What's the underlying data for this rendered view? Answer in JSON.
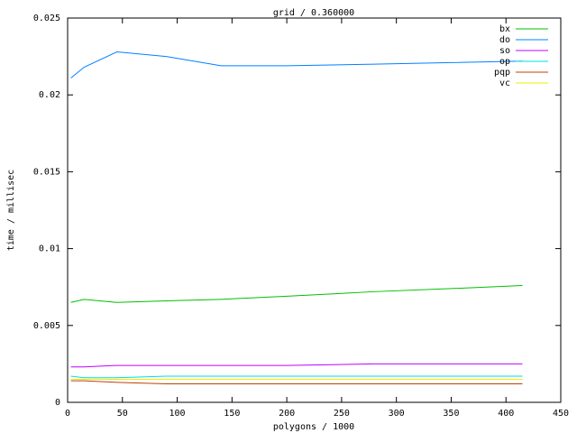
{
  "chart_data": {
    "type": "line",
    "title": "grid / 0.360000",
    "x_label": "polygons / 1000",
    "y_label": "time / millisec",
    "x": [
      3,
      15,
      45,
      90,
      140,
      200,
      280,
      350,
      415
    ],
    "series": [
      {
        "name": "bx",
        "color": "#00c000",
        "values": [
          0.0065,
          0.0067,
          0.0065,
          0.0066,
          0.0067,
          0.0069,
          0.0072,
          0.0074,
          0.0076
        ]
      },
      {
        "name": "do",
        "color": "#0080ff",
        "values": [
          0.0211,
          0.0218,
          0.0228,
          0.0225,
          0.0219,
          0.0219,
          0.022,
          0.0221,
          0.0222
        ]
      },
      {
        "name": "so",
        "color": "#c000ff",
        "values": [
          0.0023,
          0.0023,
          0.0024,
          0.0024,
          0.0024,
          0.0024,
          0.0025,
          0.0025,
          0.0025
        ]
      },
      {
        "name": "op",
        "color": "#00dddd",
        "values": [
          0.0017,
          0.0016,
          0.0016,
          0.0017,
          0.0017,
          0.0017,
          0.0017,
          0.0017,
          0.0017
        ]
      },
      {
        "name": "pqp",
        "color": "#c04000",
        "values": [
          0.0014,
          0.0014,
          0.0013,
          0.0012,
          0.0012,
          0.0012,
          0.0012,
          0.0012,
          0.0012
        ]
      },
      {
        "name": "vc",
        "color": "#eeee00",
        "values": [
          0.0015,
          0.0015,
          0.0015,
          0.0015,
          0.0015,
          0.0015,
          0.0015,
          0.0015,
          0.0015
        ]
      }
    ],
    "xlim": [
      0,
      450
    ],
    "xticks": [
      0,
      50,
      100,
      150,
      200,
      250,
      300,
      350,
      400,
      450
    ],
    "ylim": [
      0,
      0.025
    ],
    "yticks": [
      0,
      0.005,
      0.01,
      0.015,
      0.02,
      0.025
    ],
    "legend": "top-right"
  }
}
